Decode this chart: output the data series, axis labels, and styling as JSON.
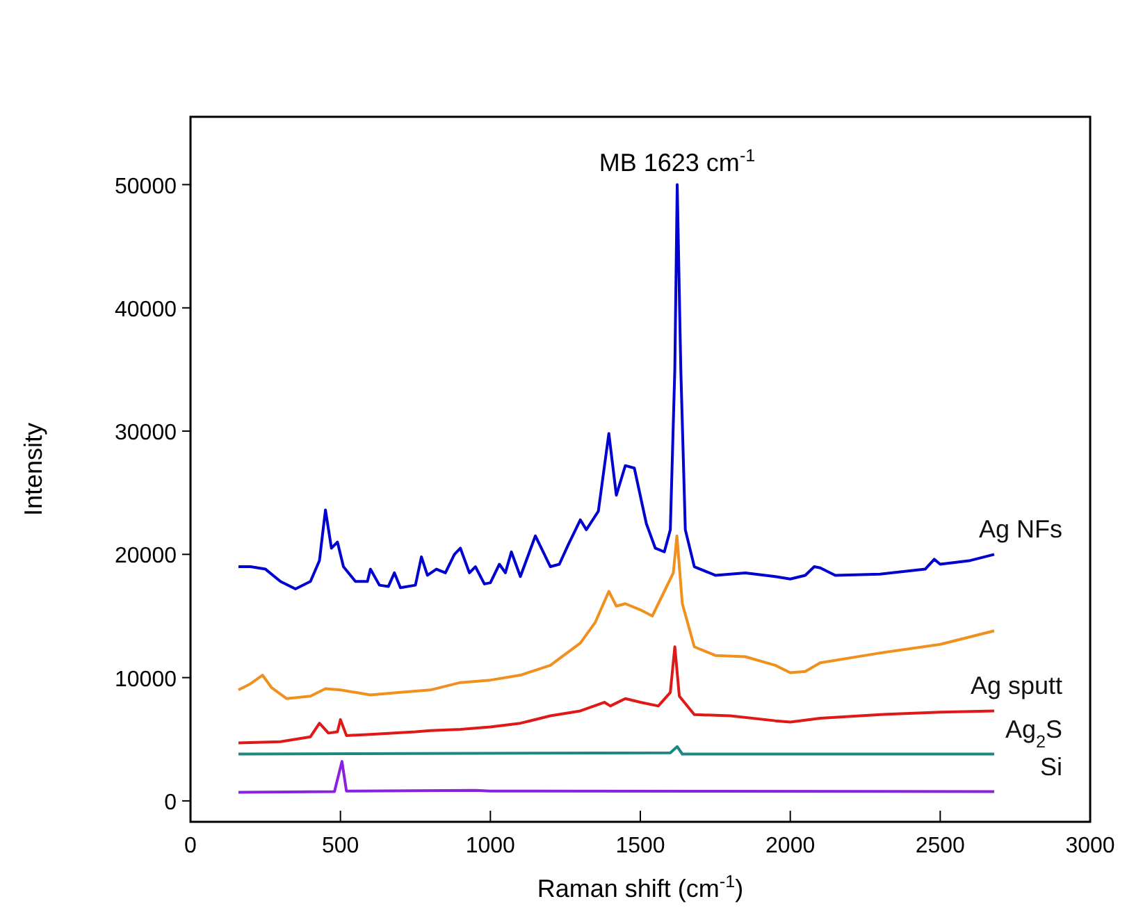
{
  "chart_data": {
    "type": "line",
    "xlabel": "Raman shift (cm$^{-1}$)",
    "ylabel": "Intensity",
    "xlim": [
      0,
      3000
    ],
    "xticks": [
      0,
      500,
      1000,
      1500,
      2000,
      2500,
      3000
    ],
    "ylim": [
      -1700,
      55500
    ],
    "yticks": [
      0,
      10000,
      20000,
      30000,
      40000,
      50000
    ],
    "grid": false,
    "marker": "none",
    "line_style": "solid",
    "annotations": [
      {
        "text": "MB 1623 cm$^{-1}$",
        "x": 1623,
        "y": 50000
      }
    ],
    "series": [
      {
        "name": "Ag NFs",
        "color": "#0000d0",
        "x": [
          160,
          200,
          250,
          300,
          350,
          400,
          430,
          450,
          470,
          490,
          510,
          550,
          590,
          600,
          630,
          660,
          680,
          700,
          750,
          770,
          790,
          820,
          850,
          880,
          900,
          930,
          950,
          980,
          1000,
          1030,
          1050,
          1070,
          1100,
          1150,
          1170,
          1200,
          1230,
          1260,
          1300,
          1320,
          1360,
          1395,
          1420,
          1450,
          1480,
          1520,
          1550,
          1580,
          1600,
          1615,
          1623,
          1635,
          1650,
          1680,
          1750,
          1850,
          1950,
          2000,
          2050,
          2080,
          2100,
          2150,
          2300,
          2450,
          2480,
          2500,
          2600,
          2680
        ],
        "values": [
          19000,
          19000,
          18800,
          17800,
          17200,
          17800,
          19500,
          23600,
          20500,
          21000,
          19000,
          17800,
          17800,
          18800,
          17500,
          17400,
          18500,
          17300,
          17500,
          19800,
          18300,
          18800,
          18500,
          20000,
          20500,
          18500,
          19000,
          17600,
          17700,
          19200,
          18500,
          20200,
          18200,
          21500,
          20500,
          19000,
          19200,
          20800,
          22800,
          22000,
          23500,
          29800,
          24800,
          27200,
          27000,
          22500,
          20500,
          20200,
          22000,
          35000,
          50000,
          35000,
          22000,
          19000,
          18300,
          18500,
          18200,
          18000,
          18300,
          19000,
          18900,
          18300,
          18400,
          18800,
          19600,
          19200,
          19500,
          20000
        ]
      },
      {
        "color": "#f0901e",
        "x": [
          160,
          200,
          240,
          270,
          320,
          400,
          450,
          500,
          600,
          700,
          800,
          900,
          1000,
          1100,
          1200,
          1300,
          1350,
          1395,
          1420,
          1450,
          1500,
          1540,
          1580,
          1610,
          1622,
          1640,
          1680,
          1750,
          1850,
          1950,
          2000,
          2050,
          2100,
          2300,
          2500,
          2680
        ],
        "values": [
          9000,
          9500,
          10200,
          9200,
          8300,
          8500,
          9100,
          9000,
          8600,
          8800,
          9000,
          9600,
          9800,
          10200,
          11000,
          12800,
          14500,
          17000,
          15800,
          16000,
          15500,
          15000,
          17000,
          18500,
          21500,
          16000,
          12500,
          11800,
          11700,
          11000,
          10400,
          10500,
          11200,
          12000,
          12700,
          13800
        ]
      },
      {
        "name": "Ag sputt",
        "color": "#e01818",
        "x": [
          160,
          300,
          400,
          430,
          460,
          490,
          500,
          520,
          600,
          750,
          800,
          900,
          1000,
          1100,
          1200,
          1300,
          1380,
          1400,
          1450,
          1500,
          1560,
          1600,
          1615,
          1630,
          1680,
          1800,
          1950,
          2000,
          2100,
          2300,
          2500,
          2680
        ],
        "values": [
          4700,
          4800,
          5200,
          6300,
          5500,
          5600,
          6600,
          5300,
          5400,
          5600,
          5700,
          5800,
          6000,
          6300,
          6900,
          7300,
          8000,
          7700,
          8300,
          8000,
          7700,
          8800,
          12500,
          8500,
          7000,
          6900,
          6500,
          6400,
          6700,
          7000,
          7200,
          7300
        ]
      },
      {
        "name": "Ag$_{2}$S",
        "color": "#1a8a80",
        "x": [
          160,
          1600,
          1623,
          1640,
          2680
        ],
        "values": [
          3800,
          3900,
          4400,
          3800,
          3800
        ]
      },
      {
        "name": "Si",
        "color": "#8a20e0",
        "x": [
          160,
          480,
          505,
          520,
          950,
          1000,
          2680
        ],
        "values": [
          700,
          750,
          3200,
          800,
          850,
          800,
          750
        ]
      }
    ]
  }
}
